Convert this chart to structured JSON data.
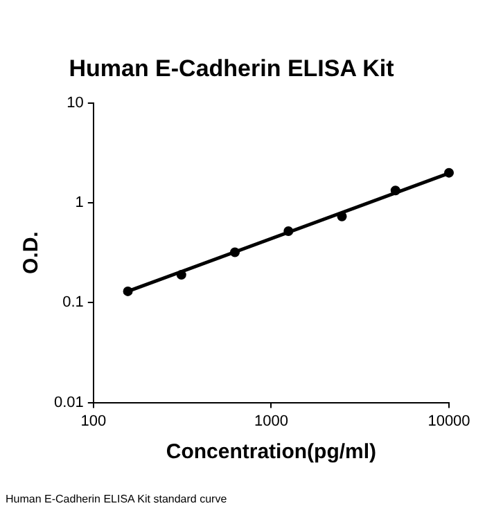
{
  "chart_data": {
    "type": "scatter",
    "title": "Human E-Cadherin ELISA Kit",
    "xlabel": "Concentration(pg/ml)",
    "ylabel": "O.D.",
    "log": "xy",
    "grid": false,
    "legend": false,
    "xlim": [
      100,
      10000
    ],
    "xticks": [
      100,
      1000,
      10000
    ],
    "ylim": [
      0.01,
      10
    ],
    "yticks": [
      0.01,
      0.1,
      1,
      10
    ],
    "series": [
      {
        "color": "#000000",
        "marker": "circle",
        "x": [
          156.25,
          312.5,
          625,
          1250,
          2500,
          5000,
          10000
        ],
        "values": [
          0.13,
          0.19,
          0.32,
          0.52,
          0.73,
          1.33,
          2.0
        ]
      },
      {
        "type": "line",
        "color": "#000000",
        "marker": "none",
        "line_style": "solid",
        "x": [
          156.25,
          10000
        ],
        "values": [
          0.13,
          1.98
        ]
      }
    ],
    "annotations": [
      "Human E-Cadherin ELISA Kit standard curve"
    ]
  }
}
